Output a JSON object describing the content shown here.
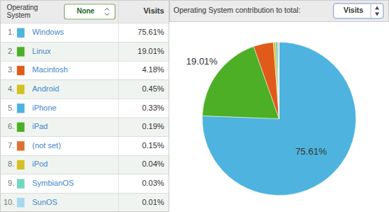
{
  "chart_data": {
    "type": "pie",
    "title": "Operating System contribution to total:",
    "categories": [
      "Windows",
      "Linux",
      "Macintosh",
      "Android",
      "iPhone",
      "iPad",
      "(not set)",
      "iPod",
      "SymbianOS",
      "SunOS"
    ],
    "values": [
      75.61,
      19.01,
      4.18,
      0.45,
      0.33,
      0.19,
      0.15,
      0.04,
      0.03,
      0.01
    ],
    "value_labels": [
      "75.61%",
      "19.01%",
      "4.18%",
      "0.45%",
      "0.33%",
      "0.19%",
      "0.15%",
      "0.04%",
      "0.03%",
      "0.01%"
    ],
    "colors": [
      "#4eb3de",
      "#4caf26",
      "#e05a1a",
      "#d4c020",
      "#4eb3de",
      "#4caf26",
      "#e07030",
      "#d4c020",
      "#70d8c0",
      "#a8d8f0"
    ],
    "rank_labels": [
      "1.",
      "2.",
      "3.",
      "4.",
      "5.",
      "6.",
      "7.",
      "8.",
      "9.",
      "10."
    ],
    "column_headers": [
      "Operating\nSystem",
      "None",
      "Visits"
    ],
    "selector": "Visits",
    "annotations": [
      "75.61%",
      "19.01%"
    ]
  }
}
